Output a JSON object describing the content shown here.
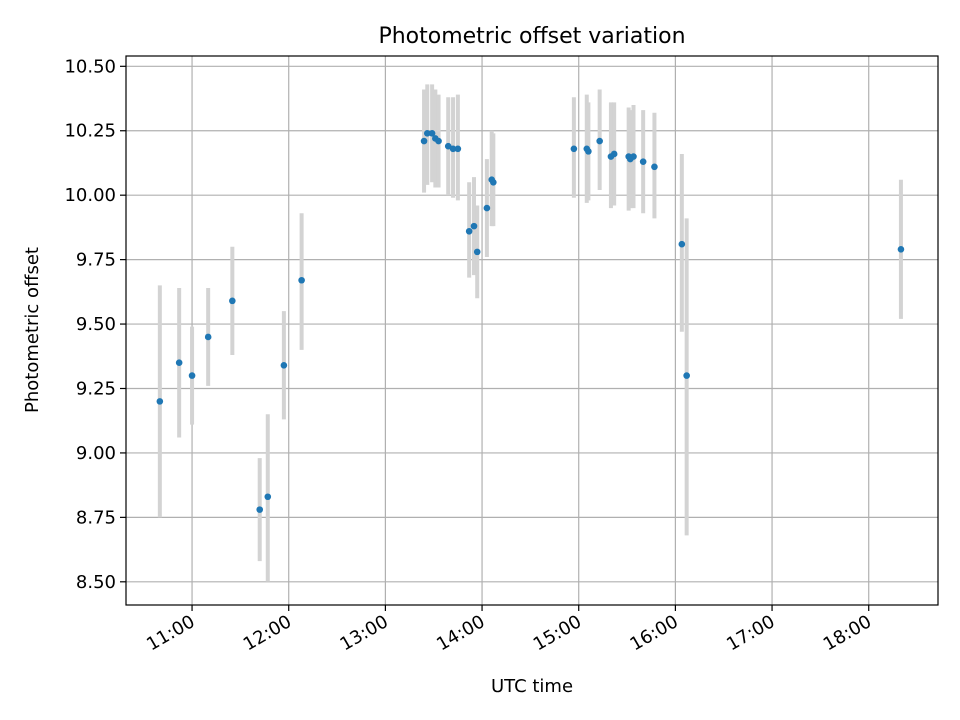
{
  "chart_data": {
    "type": "scatter",
    "title": "Photometric offset variation",
    "xlabel": "UTC time",
    "ylabel": "Photometric offset",
    "xlim": [
      "10:19",
      "18:43"
    ],
    "ylim": [
      8.41,
      10.54
    ],
    "x_ticks": [
      "11:00",
      "12:00",
      "13:00",
      "14:00",
      "15:00",
      "16:00",
      "17:00",
      "18:00"
    ],
    "y_ticks": [
      "8.50",
      "8.75",
      "9.00",
      "9.25",
      "9.50",
      "9.75",
      "10.00",
      "10.25",
      "10.50"
    ],
    "grid": true,
    "colors": {
      "marker": "#1f77b4",
      "errorbar": "#d3d3d3",
      "grid": "#b0b0b0"
    },
    "points": [
      {
        "x": "10:40",
        "y": 9.2,
        "ylow": 8.75,
        "yhigh": 9.65
      },
      {
        "x": "10:52",
        "y": 9.35,
        "ylow": 9.06,
        "yhigh": 9.64
      },
      {
        "x": "11:00",
        "y": 9.3,
        "ylow": 9.11,
        "yhigh": 9.49
      },
      {
        "x": "11:10",
        "y": 9.45,
        "ylow": 9.26,
        "yhigh": 9.64
      },
      {
        "x": "11:25",
        "y": 9.59,
        "ylow": 9.38,
        "yhigh": 9.8
      },
      {
        "x": "11:42",
        "y": 8.78,
        "ylow": 8.58,
        "yhigh": 8.98
      },
      {
        "x": "11:47",
        "y": 8.83,
        "ylow": 8.5,
        "yhigh": 9.15
      },
      {
        "x": "11:57",
        "y": 9.34,
        "ylow": 9.13,
        "yhigh": 9.55
      },
      {
        "x": "12:08",
        "y": 9.67,
        "ylow": 9.4,
        "yhigh": 9.93
      },
      {
        "x": "13:24",
        "y": 10.21,
        "ylow": 10.01,
        "yhigh": 10.41
      },
      {
        "x": "13:26",
        "y": 10.24,
        "ylow": 10.04,
        "yhigh": 10.43
      },
      {
        "x": "13:29",
        "y": 10.24,
        "ylow": 10.05,
        "yhigh": 10.43
      },
      {
        "x": "13:31",
        "y": 10.22,
        "ylow": 10.03,
        "yhigh": 10.41
      },
      {
        "x": "13:33",
        "y": 10.21,
        "ylow": 10.03,
        "yhigh": 10.39
      },
      {
        "x": "13:39",
        "y": 10.19,
        "ylow": 10.0,
        "yhigh": 10.38
      },
      {
        "x": "13:42",
        "y": 10.18,
        "ylow": 9.99,
        "yhigh": 10.38
      },
      {
        "x": "13:45",
        "y": 10.18,
        "ylow": 9.98,
        "yhigh": 10.39
      },
      {
        "x": "13:52",
        "y": 9.86,
        "ylow": 9.68,
        "yhigh": 10.05
      },
      {
        "x": "13:55",
        "y": 9.88,
        "ylow": 9.69,
        "yhigh": 10.07
      },
      {
        "x": "13:57",
        "y": 9.78,
        "ylow": 9.6,
        "yhigh": 9.96
      },
      {
        "x": "14:03",
        "y": 9.95,
        "ylow": 9.76,
        "yhigh": 10.14
      },
      {
        "x": "14:06",
        "y": 10.06,
        "ylow": 9.88,
        "yhigh": 10.25
      },
      {
        "x": "14:07",
        "y": 10.05,
        "ylow": 9.88,
        "yhigh": 10.24
      },
      {
        "x": "14:57",
        "y": 10.18,
        "ylow": 9.99,
        "yhigh": 10.38
      },
      {
        "x": "15:05",
        "y": 10.18,
        "ylow": 9.97,
        "yhigh": 10.39
      },
      {
        "x": "15:06",
        "y": 10.17,
        "ylow": 9.98,
        "yhigh": 10.36
      },
      {
        "x": "15:13",
        "y": 10.21,
        "ylow": 10.02,
        "yhigh": 10.41
      },
      {
        "x": "15:20",
        "y": 10.15,
        "ylow": 9.95,
        "yhigh": 10.36
      },
      {
        "x": "15:22",
        "y": 10.16,
        "ylow": 9.96,
        "yhigh": 10.36
      },
      {
        "x": "15:31",
        "y": 10.15,
        "ylow": 9.94,
        "yhigh": 10.34
      },
      {
        "x": "15:32",
        "y": 10.14,
        "ylow": 9.95,
        "yhigh": 10.33
      },
      {
        "x": "15:34",
        "y": 10.15,
        "ylow": 9.95,
        "yhigh": 10.35
      },
      {
        "x": "15:40",
        "y": 10.13,
        "ylow": 9.93,
        "yhigh": 10.33
      },
      {
        "x": "15:47",
        "y": 10.11,
        "ylow": 9.91,
        "yhigh": 10.32
      },
      {
        "x": "16:04",
        "y": 9.81,
        "ylow": 9.47,
        "yhigh": 10.16
      },
      {
        "x": "16:07",
        "y": 9.3,
        "ylow": 8.68,
        "yhigh": 9.91
      },
      {
        "x": "18:20",
        "y": 9.79,
        "ylow": 9.52,
        "yhigh": 10.06
      }
    ]
  }
}
